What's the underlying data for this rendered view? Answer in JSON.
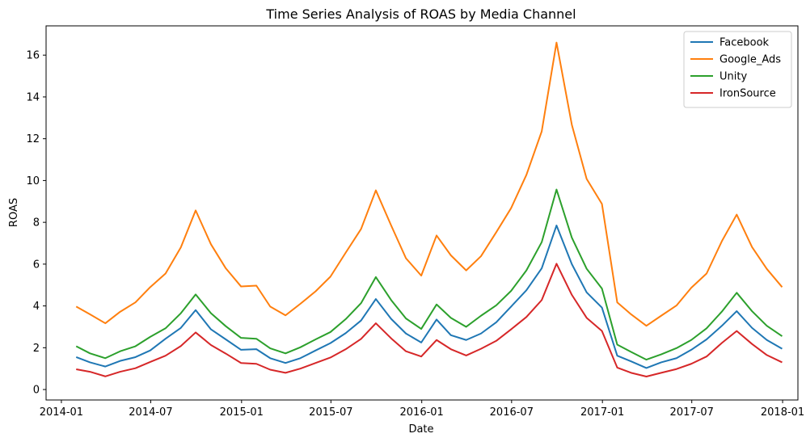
{
  "chart_data": {
    "type": "line",
    "title": "Time Series Analysis of ROAS by Media Channel",
    "xlabel": "Date",
    "ylabel": "ROAS",
    "x_type": "date",
    "xlim": [
      "2013-12-01",
      "2018-02-01"
    ],
    "ylim": [
      -0.5,
      17.4
    ],
    "yticks": [
      0,
      2,
      4,
      6,
      8,
      10,
      12,
      14,
      16
    ],
    "xticks": [
      "2014-01",
      "2014-07",
      "2015-01",
      "2015-07",
      "2016-01",
      "2016-07",
      "2017-01",
      "2017-07",
      "2018-01"
    ],
    "grid": false,
    "legend_position": "top-right",
    "x": [
      "2014-01-31",
      "2014-02-28",
      "2014-03-31",
      "2014-04-30",
      "2014-05-31",
      "2014-06-30",
      "2014-07-31",
      "2014-08-31",
      "2014-09-30",
      "2014-10-31",
      "2014-11-30",
      "2014-12-31",
      "2015-01-31",
      "2015-02-28",
      "2015-03-31",
      "2015-04-30",
      "2015-05-31",
      "2015-06-30",
      "2015-07-31",
      "2015-08-31",
      "2015-09-30",
      "2015-10-31",
      "2015-11-30",
      "2015-12-31",
      "2016-01-31",
      "2016-02-29",
      "2016-03-31",
      "2016-04-30",
      "2016-05-31",
      "2016-06-30",
      "2016-07-31",
      "2016-08-31",
      "2016-09-30",
      "2016-10-31",
      "2016-11-30",
      "2016-12-31",
      "2017-01-31",
      "2017-02-28",
      "2017-03-31",
      "2017-04-30",
      "2017-05-31",
      "2017-06-30",
      "2017-07-31",
      "2017-08-31",
      "2017-09-30",
      "2017-10-31",
      "2017-11-30",
      "2017-12-31"
    ],
    "series": [
      {
        "name": "Facebook",
        "color": "#1f77b4",
        "values": [
          1.55,
          1.3,
          1.1,
          1.37,
          1.55,
          1.87,
          2.43,
          2.95,
          3.8,
          2.88,
          2.4,
          1.9,
          1.93,
          1.5,
          1.27,
          1.5,
          1.87,
          2.22,
          2.7,
          3.3,
          4.33,
          3.38,
          2.68,
          2.25,
          3.35,
          2.6,
          2.37,
          2.68,
          3.22,
          3.97,
          4.75,
          5.8,
          7.85,
          6.0,
          4.65,
          3.92,
          1.62,
          1.35,
          1.03,
          1.3,
          1.5,
          1.9,
          2.4,
          3.05,
          3.75,
          2.95,
          2.37,
          1.95
        ]
      },
      {
        "name": "Google_Ads",
        "color": "#ff7f0e",
        "values": [
          3.97,
          3.6,
          3.17,
          3.72,
          4.17,
          4.9,
          5.55,
          6.8,
          8.57,
          6.95,
          5.8,
          4.93,
          4.97,
          3.97,
          3.55,
          4.1,
          4.7,
          5.4,
          6.55,
          7.68,
          9.53,
          7.85,
          6.28,
          5.45,
          7.37,
          6.42,
          5.7,
          6.38,
          7.53,
          8.68,
          10.27,
          12.35,
          16.6,
          12.67,
          10.08,
          8.88,
          4.17,
          3.6,
          3.05,
          3.53,
          4.02,
          4.87,
          5.55,
          7.1,
          8.37,
          6.82,
          5.77,
          4.9
        ]
      },
      {
        "name": "Unity",
        "color": "#2ca02c",
        "values": [
          2.07,
          1.73,
          1.5,
          1.83,
          2.07,
          2.52,
          2.93,
          3.65,
          4.55,
          3.65,
          3.03,
          2.47,
          2.43,
          1.97,
          1.73,
          2.02,
          2.4,
          2.75,
          3.37,
          4.13,
          5.38,
          4.28,
          3.4,
          2.9,
          4.07,
          3.43,
          3.0,
          3.53,
          4.03,
          4.72,
          5.7,
          7.05,
          9.57,
          7.27,
          5.78,
          4.83,
          2.15,
          1.8,
          1.43,
          1.68,
          1.98,
          2.37,
          2.93,
          3.73,
          4.63,
          3.75,
          3.05,
          2.55
        ]
      },
      {
        "name": "IronSource",
        "color": "#d62728",
        "values": [
          0.97,
          0.85,
          0.63,
          0.85,
          1.02,
          1.32,
          1.62,
          2.08,
          2.73,
          2.13,
          1.72,
          1.27,
          1.23,
          0.95,
          0.8,
          1.0,
          1.27,
          1.53,
          1.93,
          2.42,
          3.17,
          2.45,
          1.83,
          1.58,
          2.37,
          1.93,
          1.63,
          1.95,
          2.33,
          2.88,
          3.47,
          4.28,
          6.02,
          4.53,
          3.43,
          2.8,
          1.05,
          0.8,
          0.62,
          0.8,
          0.98,
          1.23,
          1.58,
          2.23,
          2.8,
          2.18,
          1.65,
          1.3
        ]
      }
    ]
  }
}
